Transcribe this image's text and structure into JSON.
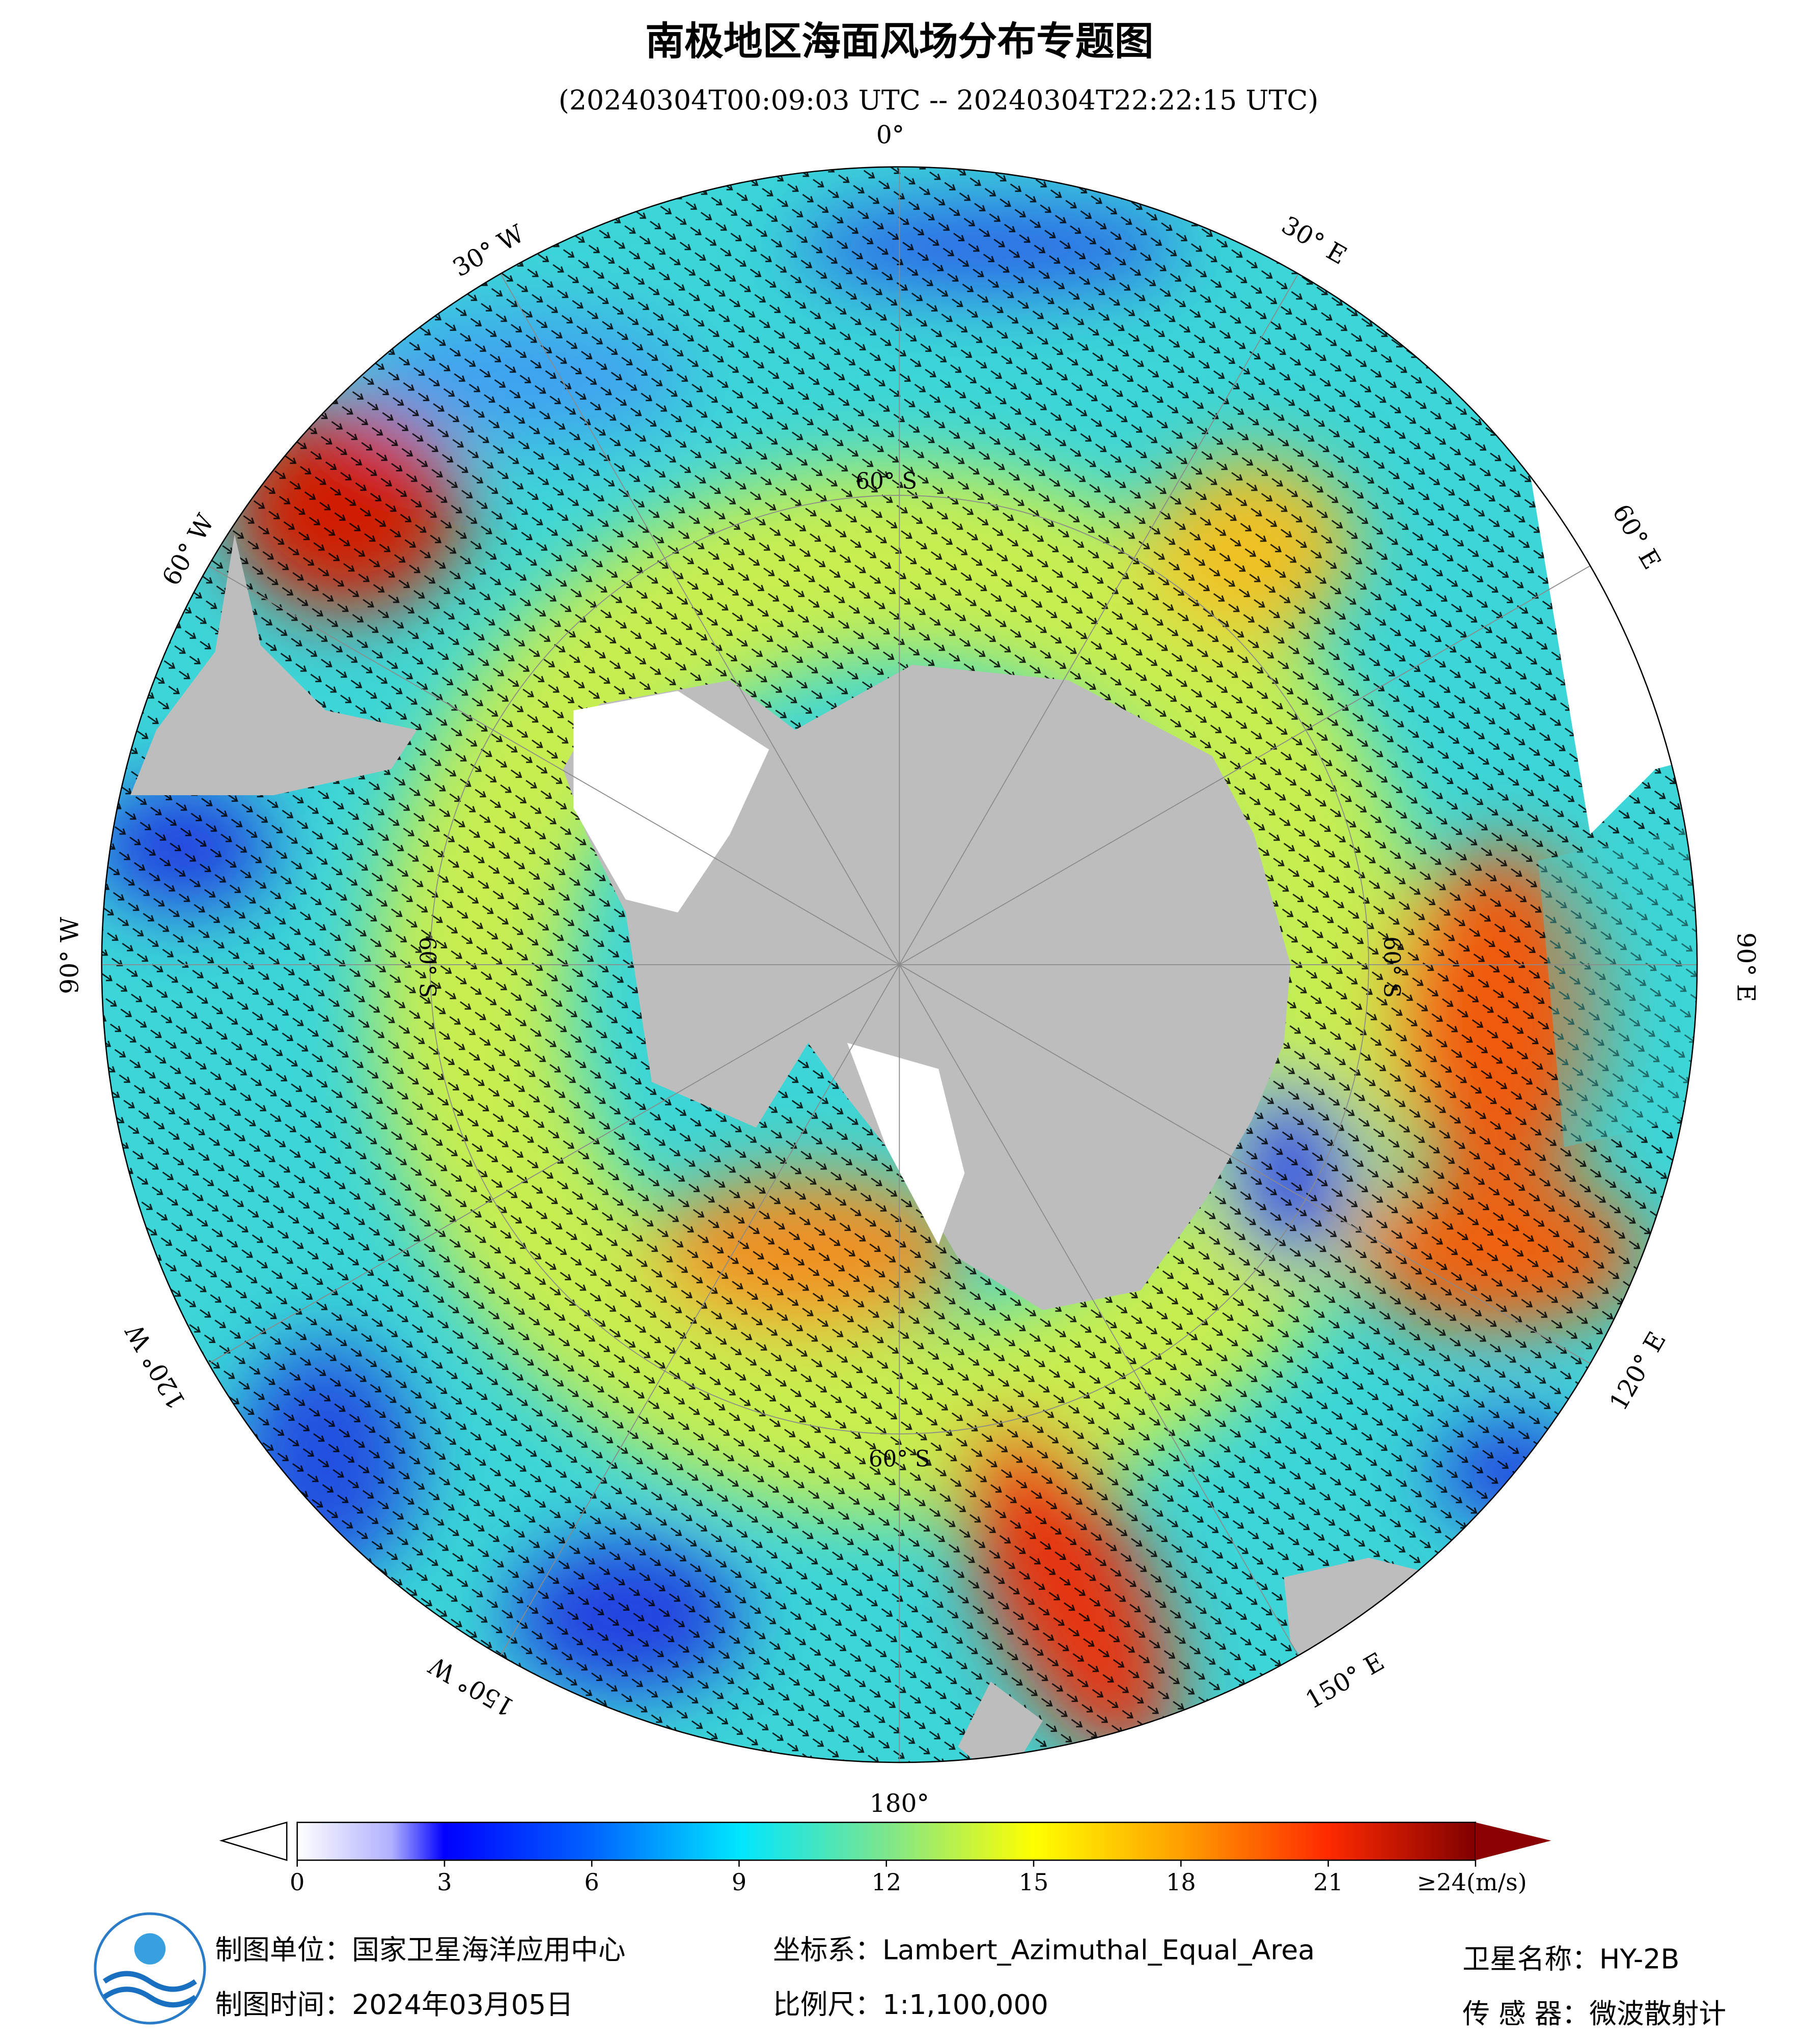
{
  "header": {
    "title": "南极地区海面风场分布专题图",
    "subtitle": "(20240304T00:09:03 UTC -- 20240304T22:22:15 UTC)"
  },
  "map": {
    "longitude_labels": [
      "0°",
      "30° E",
      "60° E",
      "90° E",
      "120° E",
      "150° E",
      "180°",
      "150° W",
      "120° W",
      "90° W",
      "60° W",
      "30° W"
    ],
    "latitude_labels": [
      "60° S",
      "60° S",
      "60° S",
      "60° S"
    ]
  },
  "colorbar": {
    "range": [
      0,
      24
    ],
    "ticks": [
      0,
      3,
      6,
      9,
      12,
      15,
      18,
      21,
      {
        "value": 24,
        "label": "≥24(m/s)"
      }
    ]
  },
  "footer": {
    "producer": "制图单位：国家卫星海洋应用中心",
    "date": "制图时间：2024年03月05日",
    "projection": "坐标系：Lambert_Azimuthal_Equal_Area",
    "scale": "比例尺：1:1,100,000",
    "satellite": "卫星名称：HY-2B",
    "sensor": "传 感 器：微波散射计"
  }
}
